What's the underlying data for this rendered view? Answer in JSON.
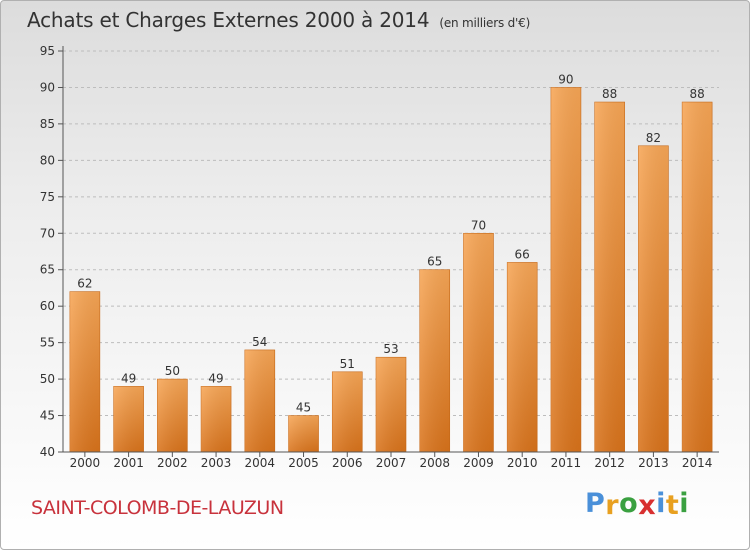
{
  "title": "Achats et Charges Externes 2000 à 2014",
  "unit": "(en milliers d'€)",
  "town": "SAINT-COLOMB-DE-LAUZUN",
  "logo": {
    "letters": [
      "P",
      "r",
      "o",
      "x",
      "i",
      "t",
      "i"
    ],
    "colors": [
      "#4a90d9",
      "#e8a020",
      "#3aa040",
      "#d83030",
      "#4a90d9",
      "#e8a020",
      "#3aa040"
    ]
  },
  "chart_data": {
    "type": "bar",
    "categories": [
      "2000",
      "2001",
      "2002",
      "2003",
      "2004",
      "2005",
      "2006",
      "2007",
      "2008",
      "2009",
      "2010",
      "2011",
      "2012",
      "2013",
      "2014"
    ],
    "values": [
      62,
      49,
      50,
      49,
      54,
      45,
      51,
      53,
      65,
      70,
      66,
      90,
      88,
      82,
      88
    ],
    "ylim": [
      40,
      95
    ],
    "yticks": [
      40,
      45,
      50,
      55,
      60,
      65,
      70,
      75,
      80,
      85,
      90,
      95
    ],
    "grid": true,
    "bar_color": "#f0953a"
  }
}
